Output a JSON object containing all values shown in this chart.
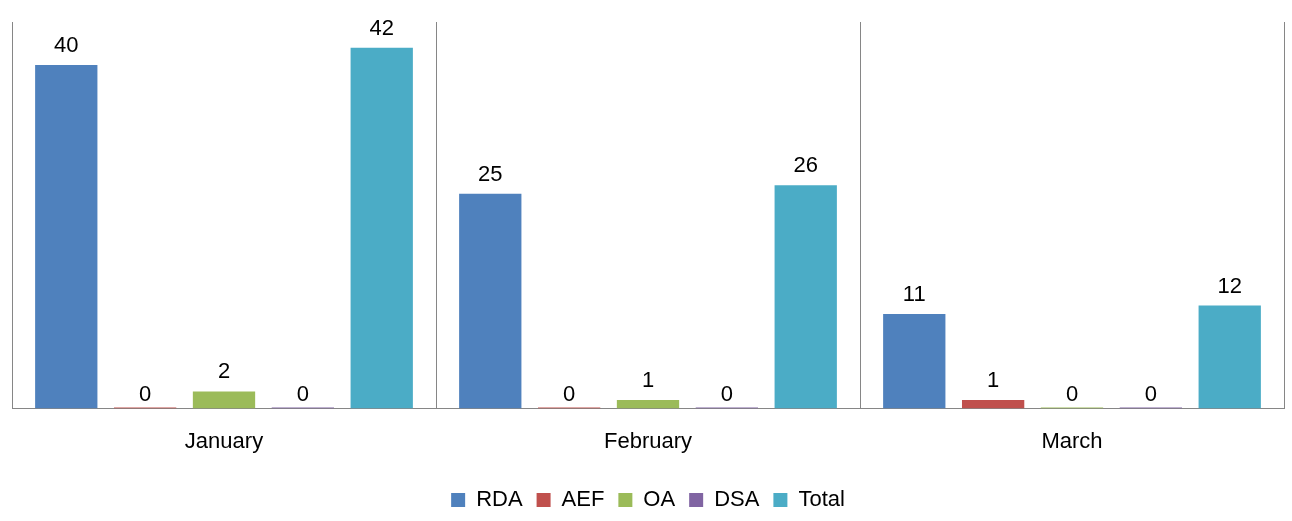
{
  "chart_data": {
    "type": "bar",
    "categories": [
      "January",
      "February",
      "March"
    ],
    "series": [
      {
        "name": "RDA",
        "color": "#4f81bd",
        "values": [
          40,
          25,
          11
        ]
      },
      {
        "name": "AEF",
        "color": "#c0504d",
        "values": [
          0,
          0,
          1
        ]
      },
      {
        "name": "OA",
        "color": "#9bbb59",
        "values": [
          2,
          1,
          0
        ]
      },
      {
        "name": "DSA",
        "color": "#8064a2",
        "values": [
          0,
          0,
          0
        ]
      },
      {
        "name": "Total",
        "color": "#4bacc6",
        "values": [
          42,
          26,
          12
        ]
      }
    ],
    "data_labels": true,
    "grid": "x",
    "legend": "bottom",
    "tick_labels": "x"
  }
}
